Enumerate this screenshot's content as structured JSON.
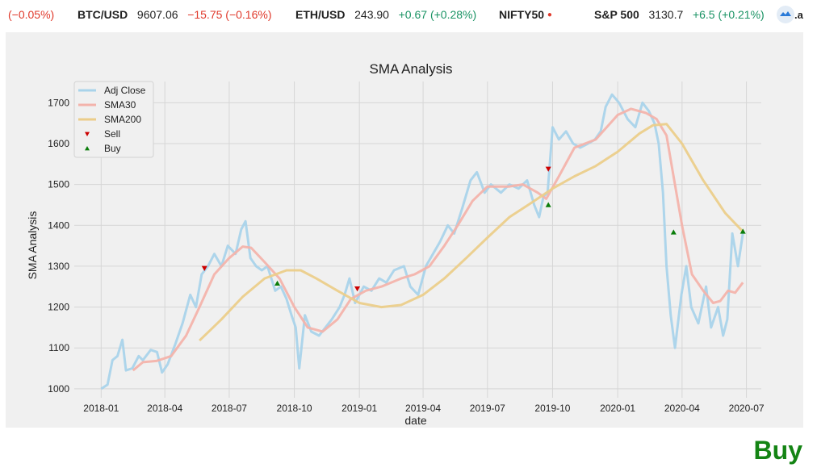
{
  "ticker": [
    {
      "symbol": "",
      "price": "",
      "change": "(−0.05%)",
      "dir": "neg"
    },
    {
      "symbol": "BTC/USD",
      "price": "9607.06",
      "change": "−15.75 (−0.16%)",
      "dir": "neg"
    },
    {
      "symbol": "ETH/USD",
      "price": "243.90",
      "change": "+0.67 (+0.28%)",
      "dir": "pos"
    },
    {
      "symbol": "NIFTY50",
      "price": "",
      "change": "",
      "dir": "neg"
    },
    {
      "symbol": "S&P 500",
      "price": "3130.7",
      "change": "+6.5 (+0.21%)",
      "dir": "pos"
    }
  ],
  "action_label": "Buy",
  "colors": {
    "adj_close": "#a9d3ea",
    "sma30": "#f3b3ab",
    "sma200": "#ebcd8a",
    "sell": "#cc0000",
    "buy": "#0a7d0a",
    "plot_bg": "#f0f0f0",
    "grid": "#d6d6d6",
    "action": "#148414"
  },
  "chart_data": {
    "type": "line",
    "title": "SMA Analysis",
    "xlabel": "date",
    "ylabel": "SMA Analysis",
    "xlim": [
      "2017-11-24",
      "2020-07-22"
    ],
    "ylim": [
      978,
      1752
    ],
    "xticks": [
      "2018-01",
      "2018-04",
      "2018-07",
      "2018-10",
      "2019-01",
      "2019-04",
      "2019-07",
      "2019-10",
      "2020-01",
      "2020-04",
      "2020-07"
    ],
    "yticks": [
      1000,
      1100,
      1200,
      1300,
      1400,
      1500,
      1600,
      1700
    ],
    "grid": true,
    "legend_position": "top-left",
    "series": [
      {
        "name": "Adj Close",
        "key": "adj_close",
        "points": [
          [
            "2018-01-01",
            1000
          ],
          [
            "2018-01-10",
            1010
          ],
          [
            "2018-01-17",
            1070
          ],
          [
            "2018-01-24",
            1080
          ],
          [
            "2018-01-31",
            1120
          ],
          [
            "2018-02-05",
            1045
          ],
          [
            "2018-02-14",
            1050
          ],
          [
            "2018-02-23",
            1080
          ],
          [
            "2018-03-01",
            1070
          ],
          [
            "2018-03-12",
            1095
          ],
          [
            "2018-03-21",
            1090
          ],
          [
            "2018-03-28",
            1040
          ],
          [
            "2018-04-05",
            1060
          ],
          [
            "2018-04-16",
            1110
          ],
          [
            "2018-04-26",
            1160
          ],
          [
            "2018-05-07",
            1230
          ],
          [
            "2018-05-15",
            1200
          ],
          [
            "2018-05-23",
            1280
          ],
          [
            "2018-06-01",
            1300
          ],
          [
            "2018-06-10",
            1330
          ],
          [
            "2018-06-20",
            1300
          ],
          [
            "2018-06-29",
            1350
          ],
          [
            "2018-07-10",
            1330
          ],
          [
            "2018-07-18",
            1390
          ],
          [
            "2018-07-24",
            1410
          ],
          [
            "2018-07-31",
            1320
          ],
          [
            "2018-08-08",
            1300
          ],
          [
            "2018-08-16",
            1290
          ],
          [
            "2018-08-24",
            1300
          ],
          [
            "2018-09-04",
            1240
          ],
          [
            "2018-09-12",
            1250
          ],
          [
            "2018-09-20",
            1220
          ],
          [
            "2018-09-27",
            1180
          ],
          [
            "2018-10-03",
            1150
          ],
          [
            "2018-10-08",
            1050
          ],
          [
            "2018-10-16",
            1180
          ],
          [
            "2018-10-25",
            1140
          ],
          [
            "2018-11-05",
            1130
          ],
          [
            "2018-11-14",
            1150
          ],
          [
            "2018-11-23",
            1170
          ],
          [
            "2018-12-04",
            1200
          ],
          [
            "2018-12-11",
            1230
          ],
          [
            "2018-12-18",
            1270
          ],
          [
            "2018-12-26",
            1210
          ],
          [
            "2019-01-07",
            1250
          ],
          [
            "2019-01-18",
            1240
          ],
          [
            "2019-01-29",
            1270
          ],
          [
            "2019-02-08",
            1260
          ],
          [
            "2019-02-19",
            1290
          ],
          [
            "2019-03-05",
            1300
          ],
          [
            "2019-03-14",
            1250
          ],
          [
            "2019-03-25",
            1230
          ],
          [
            "2019-04-05",
            1300
          ],
          [
            "2019-04-15",
            1330
          ],
          [
            "2019-04-25",
            1360
          ],
          [
            "2019-05-06",
            1400
          ],
          [
            "2019-05-15",
            1380
          ],
          [
            "2019-05-26",
            1440
          ],
          [
            "2019-06-07",
            1510
          ],
          [
            "2019-06-16",
            1530
          ],
          [
            "2019-06-27",
            1480
          ],
          [
            "2019-07-06",
            1500
          ],
          [
            "2019-07-20",
            1480
          ],
          [
            "2019-08-01",
            1500
          ],
          [
            "2019-08-14",
            1490
          ],
          [
            "2019-08-26",
            1510
          ],
          [
            "2019-09-05",
            1450
          ],
          [
            "2019-09-12",
            1420
          ],
          [
            "2019-09-18",
            1470
          ],
          [
            "2019-09-24",
            1480
          ],
          [
            "2019-10-01",
            1640
          ],
          [
            "2019-10-10",
            1610
          ],
          [
            "2019-10-20",
            1630
          ],
          [
            "2019-10-30",
            1600
          ],
          [
            "2019-11-09",
            1590
          ],
          [
            "2019-11-20",
            1600
          ],
          [
            "2019-11-30",
            1610
          ],
          [
            "2019-12-08",
            1630
          ],
          [
            "2019-12-15",
            1690
          ],
          [
            "2019-12-24",
            1720
          ],
          [
            "2020-01-03",
            1700
          ],
          [
            "2020-01-15",
            1660
          ],
          [
            "2020-01-26",
            1640
          ],
          [
            "2020-02-05",
            1700
          ],
          [
            "2020-02-14",
            1680
          ],
          [
            "2020-02-22",
            1650
          ],
          [
            "2020-02-28",
            1600
          ],
          [
            "2020-03-05",
            1480
          ],
          [
            "2020-03-10",
            1300
          ],
          [
            "2020-03-16",
            1180
          ],
          [
            "2020-03-22",
            1100
          ],
          [
            "2020-03-31",
            1230
          ],
          [
            "2020-04-07",
            1300
          ],
          [
            "2020-04-14",
            1200
          ],
          [
            "2020-04-24",
            1160
          ],
          [
            "2020-05-05",
            1250
          ],
          [
            "2020-05-12",
            1150
          ],
          [
            "2020-05-22",
            1200
          ],
          [
            "2020-05-29",
            1130
          ],
          [
            "2020-06-04",
            1170
          ],
          [
            "2020-06-11",
            1380
          ],
          [
            "2020-06-19",
            1300
          ],
          [
            "2020-06-26",
            1380
          ]
        ]
      },
      {
        "name": "SMA30",
        "key": "sma30",
        "points": [
          [
            "2018-02-15",
            1045
          ],
          [
            "2018-03-01",
            1065
          ],
          [
            "2018-03-20",
            1068
          ],
          [
            "2018-04-10",
            1080
          ],
          [
            "2018-05-01",
            1130
          ],
          [
            "2018-05-20",
            1200
          ],
          [
            "2018-06-10",
            1280
          ],
          [
            "2018-07-01",
            1320
          ],
          [
            "2018-07-20",
            1348
          ],
          [
            "2018-08-01",
            1345
          ],
          [
            "2018-08-20",
            1310
          ],
          [
            "2018-09-10",
            1270
          ],
          [
            "2018-10-01",
            1200
          ],
          [
            "2018-10-20",
            1150
          ],
          [
            "2018-11-10",
            1140
          ],
          [
            "2018-12-01",
            1170
          ],
          [
            "2018-12-20",
            1220
          ],
          [
            "2019-01-10",
            1240
          ],
          [
            "2019-02-01",
            1250
          ],
          [
            "2019-03-01",
            1270
          ],
          [
            "2019-03-20",
            1280
          ],
          [
            "2019-04-10",
            1300
          ],
          [
            "2019-05-01",
            1350
          ],
          [
            "2019-05-20",
            1400
          ],
          [
            "2019-06-10",
            1460
          ],
          [
            "2019-07-01",
            1495
          ],
          [
            "2019-08-01",
            1495
          ],
          [
            "2019-08-20",
            1500
          ],
          [
            "2019-09-10",
            1480
          ],
          [
            "2019-09-22",
            1465
          ],
          [
            "2019-10-10",
            1520
          ],
          [
            "2019-11-01",
            1590
          ],
          [
            "2019-12-01",
            1610
          ],
          [
            "2020-01-01",
            1670
          ],
          [
            "2020-01-20",
            1685
          ],
          [
            "2020-02-10",
            1675
          ],
          [
            "2020-02-25",
            1660
          ],
          [
            "2020-03-10",
            1620
          ],
          [
            "2020-03-20",
            1520
          ],
          [
            "2020-04-01",
            1400
          ],
          [
            "2020-04-15",
            1280
          ],
          [
            "2020-05-01",
            1240
          ],
          [
            "2020-05-15",
            1210
          ],
          [
            "2020-05-25",
            1215
          ],
          [
            "2020-06-05",
            1240
          ],
          [
            "2020-06-15",
            1235
          ],
          [
            "2020-06-26",
            1260
          ]
        ]
      },
      {
        "name": "SMA200",
        "key": "sma200",
        "points": [
          [
            "2018-05-20",
            1118
          ],
          [
            "2018-06-20",
            1170
          ],
          [
            "2018-07-20",
            1225
          ],
          [
            "2018-08-20",
            1270
          ],
          [
            "2018-09-20",
            1290
          ],
          [
            "2018-10-10",
            1290
          ],
          [
            "2018-11-01",
            1270
          ],
          [
            "2018-12-01",
            1240
          ],
          [
            "2019-01-01",
            1210
          ],
          [
            "2019-02-01",
            1200
          ],
          [
            "2019-03-01",
            1205
          ],
          [
            "2019-04-01",
            1230
          ],
          [
            "2019-05-01",
            1270
          ],
          [
            "2019-06-01",
            1320
          ],
          [
            "2019-07-01",
            1370
          ],
          [
            "2019-08-01",
            1420
          ],
          [
            "2019-09-01",
            1455
          ],
          [
            "2019-10-01",
            1490
          ],
          [
            "2019-11-01",
            1520
          ],
          [
            "2019-12-01",
            1545
          ],
          [
            "2020-01-01",
            1580
          ],
          [
            "2020-02-01",
            1625
          ],
          [
            "2020-02-20",
            1645
          ],
          [
            "2020-03-10",
            1648
          ],
          [
            "2020-04-01",
            1600
          ],
          [
            "2020-05-01",
            1510
          ],
          [
            "2020-06-01",
            1430
          ],
          [
            "2020-06-26",
            1385
          ]
        ]
      }
    ],
    "markers": [
      {
        "name": "Sell",
        "key": "sell",
        "symbol": "triangle-down",
        "points": [
          [
            "2018-05-27",
            1295
          ],
          [
            "2018-12-29",
            1245
          ],
          [
            "2019-09-25",
            1538
          ]
        ]
      },
      {
        "name": "Buy",
        "key": "buy",
        "symbol": "triangle-up",
        "points": [
          [
            "2018-09-07",
            1258
          ],
          [
            "2019-09-25",
            1450
          ],
          [
            "2020-03-20",
            1383
          ],
          [
            "2020-06-26",
            1385
          ]
        ]
      }
    ]
  }
}
